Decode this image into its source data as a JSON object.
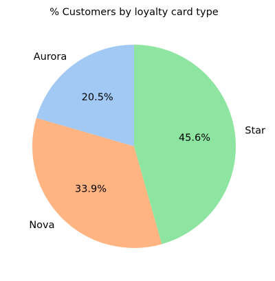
{
  "chart_data": {
    "type": "pie",
    "title": "% Customers by loyalty card type",
    "labels": [
      "Aurora",
      "Nova",
      "Star"
    ],
    "values": [
      20.5,
      33.9,
      45.6
    ],
    "value_labels": [
      "20.5%",
      "33.9%",
      "45.6%"
    ],
    "colors": [
      "#a1c9f4",
      "#ffb482",
      "#8de5a1"
    ],
    "start_angle": 90,
    "direction": "counterclockwise",
    "legend": "none"
  }
}
